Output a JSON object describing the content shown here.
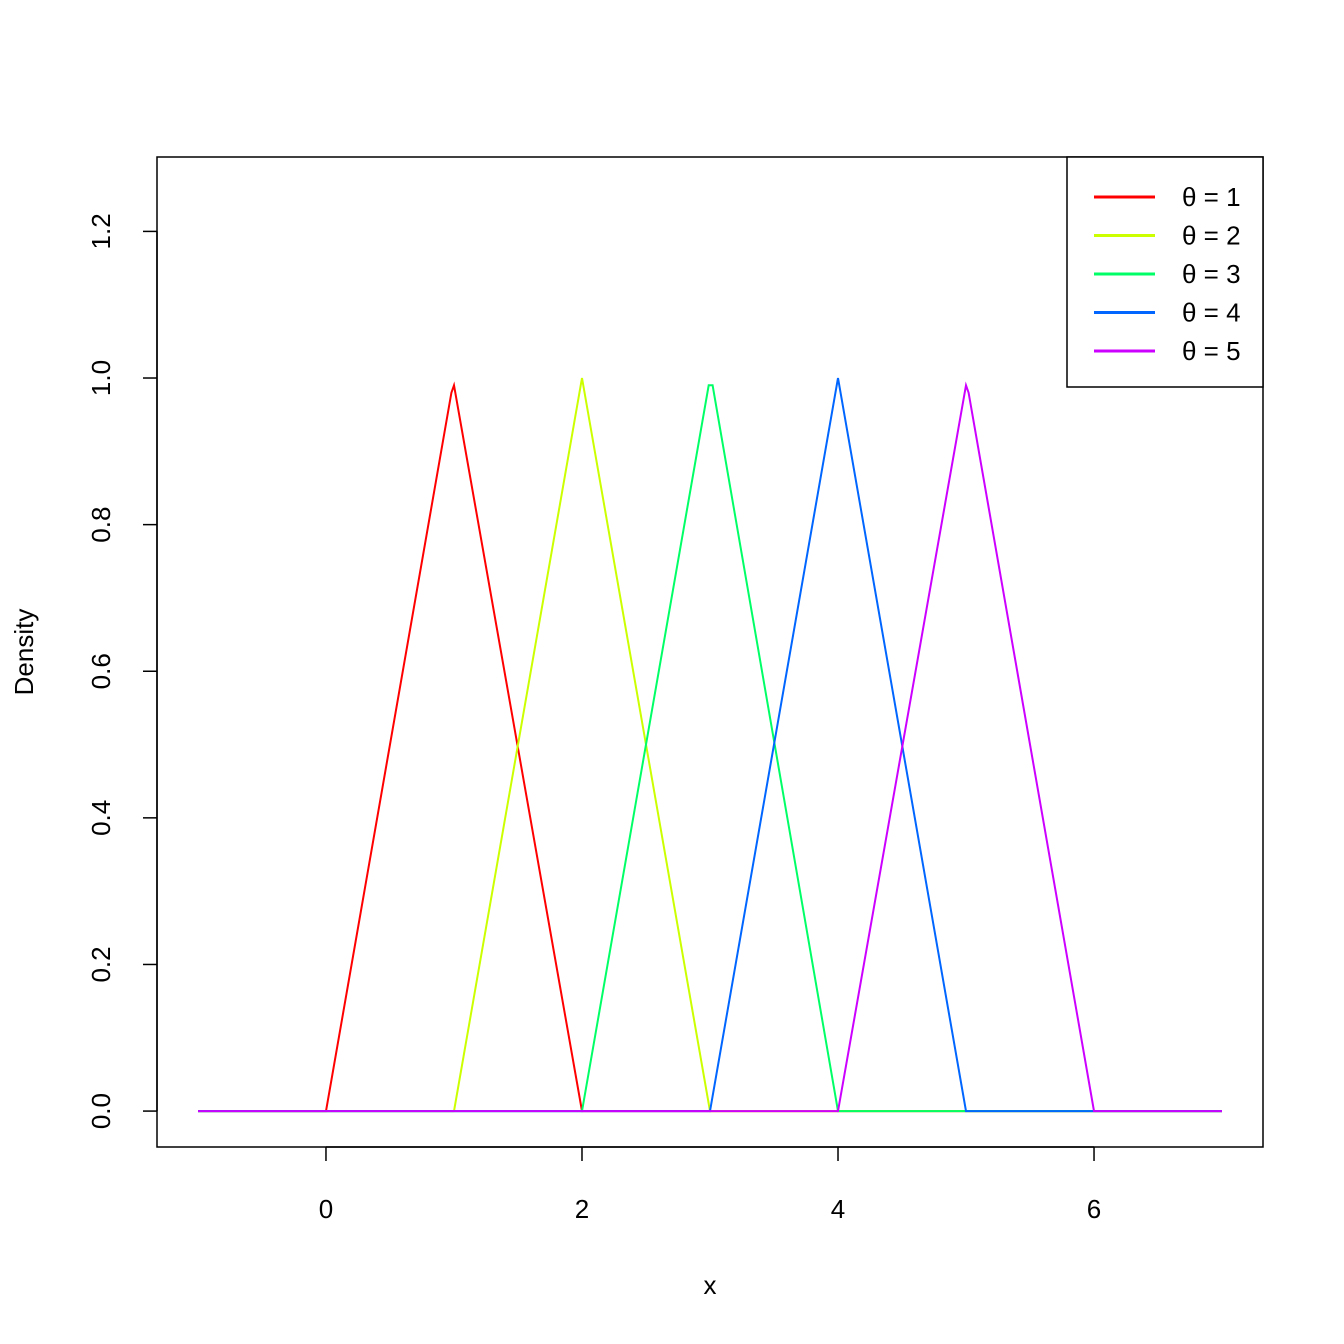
{
  "chart_data": {
    "type": "line",
    "title": "",
    "xlabel": "x",
    "ylabel": "Density",
    "xlim": [
      -1.32,
      7.32
    ],
    "ylim": [
      -0.049,
      1.3015
    ],
    "xticks": [
      0,
      2,
      4,
      6
    ],
    "xtick_labels": [
      "0",
      "2",
      "4",
      "6"
    ],
    "yticks": [
      0.0,
      0.2,
      0.4,
      0.6,
      0.8,
      1.0,
      1.2
    ],
    "ytick_labels": [
      "0.0",
      "0.2",
      "0.4",
      "0.6",
      "0.8",
      "1.0",
      "1.2"
    ],
    "grid": false,
    "legend_position": "top-right",
    "series": [
      {
        "name": "θ = 1",
        "color": "#FF0000",
        "x": [
          -1,
          0,
          0.98,
          1,
          2,
          7
        ],
        "y": [
          0,
          0,
          0.98,
          0.99,
          0,
          0
        ]
      },
      {
        "name": "θ = 2",
        "color": "#CCFF00",
        "x": [
          -1,
          1,
          2,
          3,
          7
        ],
        "y": [
          0,
          0,
          1.0,
          0,
          0
        ]
      },
      {
        "name": "θ = 3",
        "color": "#00FF66",
        "x": [
          -1,
          2,
          2.99,
          3.02,
          4,
          7
        ],
        "y": [
          0,
          0,
          0.99,
          0.99,
          0,
          0
        ]
      },
      {
        "name": "θ = 4",
        "color": "#0066FF",
        "x": [
          -1,
          3,
          4,
          5,
          7
        ],
        "y": [
          0,
          0,
          1.0,
          0,
          0
        ]
      },
      {
        "name": "θ = 5",
        "color": "#CC00FF",
        "x": [
          -1,
          4,
          5,
          5.02,
          6,
          7
        ],
        "y": [
          0,
          0,
          0.99,
          0.98,
          0,
          0
        ]
      }
    ]
  }
}
